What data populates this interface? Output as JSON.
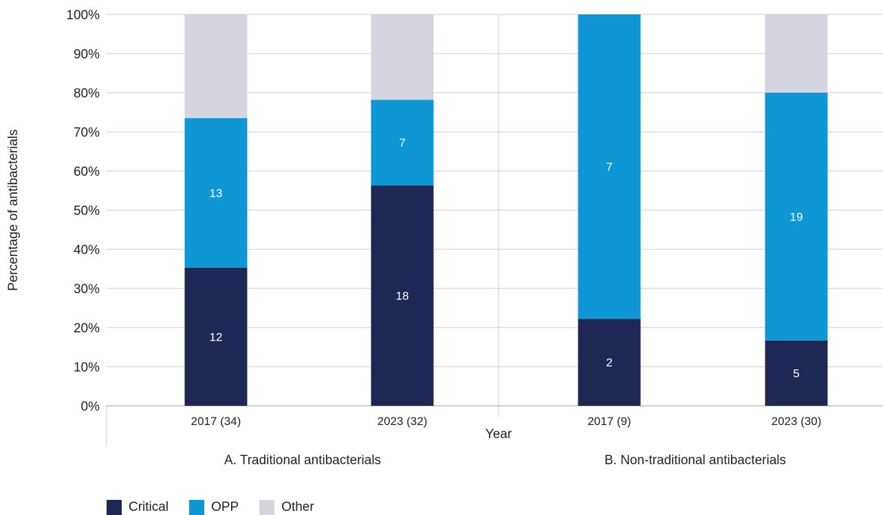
{
  "chart_data": {
    "type": "bar",
    "stacked": true,
    "ylabel": "Percentage of antibacterials",
    "xlabel": "Year",
    "ylim": [
      0,
      100
    ],
    "yticks": [
      "0%",
      "10%",
      "20%",
      "30%",
      "40%",
      "50%",
      "60%",
      "70%",
      "80%",
      "90%",
      "100%"
    ],
    "grid": true,
    "legend_position": "bottom-left",
    "colors": {
      "Critical": "#1f2854",
      "OPP": "#0f97d5",
      "Other": "#d5d5e0"
    },
    "groups": [
      {
        "label": "A. Traditional antibacterials",
        "bars": [
          {
            "category": "2017 (34)",
            "Critical": 35.3,
            "OPP": 38.2,
            "Other": 26.5,
            "labels": {
              "Critical": "12",
              "OPP": "13"
            }
          },
          {
            "category": "2023 (32)",
            "Critical": 56.3,
            "OPP": 21.9,
            "Other": 21.8,
            "labels": {
              "Critical": "18",
              "OPP": "7"
            }
          }
        ]
      },
      {
        "label": "B. Non-traditional antibacterials",
        "bars": [
          {
            "category": "2017 (9)",
            "Critical": 22.2,
            "OPP": 77.8,
            "Other": 0,
            "labels": {
              "Critical": "2",
              "OPP": "7"
            }
          },
          {
            "category": "2023 (30)",
            "Critical": 16.7,
            "OPP": 63.3,
            "Other": 20.0,
            "labels": {
              "Critical": "5",
              "OPP": "19"
            }
          }
        ]
      }
    ],
    "series": [
      {
        "name": "Critical"
      },
      {
        "name": "OPP"
      },
      {
        "name": "Other"
      }
    ]
  }
}
